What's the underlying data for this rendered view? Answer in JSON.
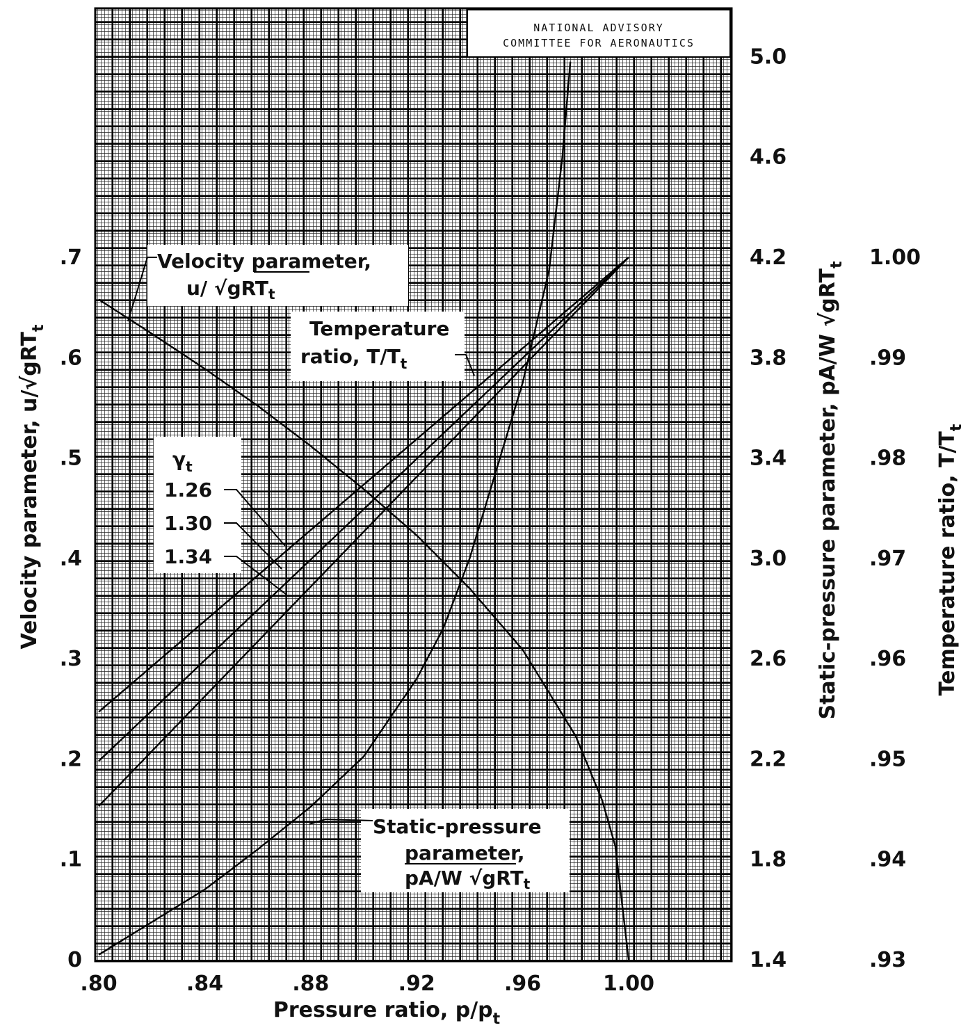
{
  "chart_data": {
    "type": "line",
    "header": [
      "NATIONAL ADVISORY",
      "COMMITTEE FOR AERONAUTICS"
    ],
    "xlabel": "Pressure ratio, p/p",
    "xlabel_sub": "t",
    "xlim": [
      0.8,
      1.05
    ],
    "xticks": [
      ".80",
      ".84",
      ".88",
      ".92",
      ".96",
      "1.00"
    ],
    "y_left": {
      "label": "Velocity parameter, u/√gRT",
      "label_sub": "t",
      "lim": [
        0,
        0.7
      ],
      "ticks": [
        "0",
        ".1",
        ".2",
        ".3",
        ".4",
        ".5",
        ".6",
        ".7"
      ]
    },
    "y_right_1": {
      "label": "Static-pressure parameter, pA/W √gRT",
      "label_sub": "t",
      "lim": [
        1.4,
        5.0
      ],
      "ticks": [
        "1.4",
        "1.8",
        "2.2",
        "2.6",
        "3.0",
        "3.4",
        "3.8",
        "4.2",
        "4.6",
        "5.0"
      ]
    },
    "y_right_2": {
      "label": "Temperature ratio, T/T",
      "label_sub": "t",
      "lim": [
        0.93,
        1.0
      ],
      "ticks": [
        ".93",
        ".94",
        ".95",
        ".96",
        ".97",
        ".98",
        ".99",
        "1.00"
      ]
    },
    "series": [
      {
        "axis": "velocity",
        "x": [
          0.8,
          0.82,
          0.84,
          0.86,
          0.88,
          0.9,
          0.92,
          0.94,
          0.96,
          0.98,
          0.99,
          0.995,
          1.0
        ],
        "y": [
          0.658,
          0.624,
          0.589,
          0.552,
          0.512,
          0.469,
          0.423,
          0.37,
          0.309,
          0.223,
          0.159,
          0.113,
          0.0
        ]
      },
      {
        "axis": "static_pressure",
        "x": [
          0.8,
          0.82,
          0.84,
          0.86,
          0.88,
          0.9,
          0.92,
          0.93,
          0.94,
          0.95,
          0.96,
          0.97,
          0.975,
          0.978
        ],
        "y": [
          1.42,
          1.55,
          1.68,
          1.84,
          2.01,
          2.21,
          2.52,
          2.72,
          3.0,
          3.35,
          3.7,
          4.15,
          4.6,
          4.98
        ]
      },
      {
        "axis": "temperature",
        "labels_gamma": "1.26",
        "x": [
          0.8,
          1.0
        ],
        "y": [
          0.9547,
          1.0
        ]
      },
      {
        "axis": "temperature",
        "labels_gamma": "1.30",
        "x": [
          0.8,
          1.0
        ],
        "y": [
          0.9498,
          1.0
        ]
      },
      {
        "axis": "temperature",
        "labels_gamma": "1.34",
        "x": [
          0.8,
          1.0
        ],
        "y": [
          0.9453,
          1.0
        ]
      }
    ],
    "annotations": {
      "velocity": [
        "Velocity parameter,",
        "u/ √gRT",
        "t"
      ],
      "temperature": [
        "Temperature",
        "ratio, T/T",
        "t"
      ],
      "static_pressure": [
        "Static-pressure",
        "parameter,",
        "pA/W √gRT",
        "t"
      ],
      "gamma_header": "γ",
      "gamma_sub": "t",
      "gamma_values": [
        "1.26",
        "1.30",
        "1.34"
      ]
    }
  }
}
